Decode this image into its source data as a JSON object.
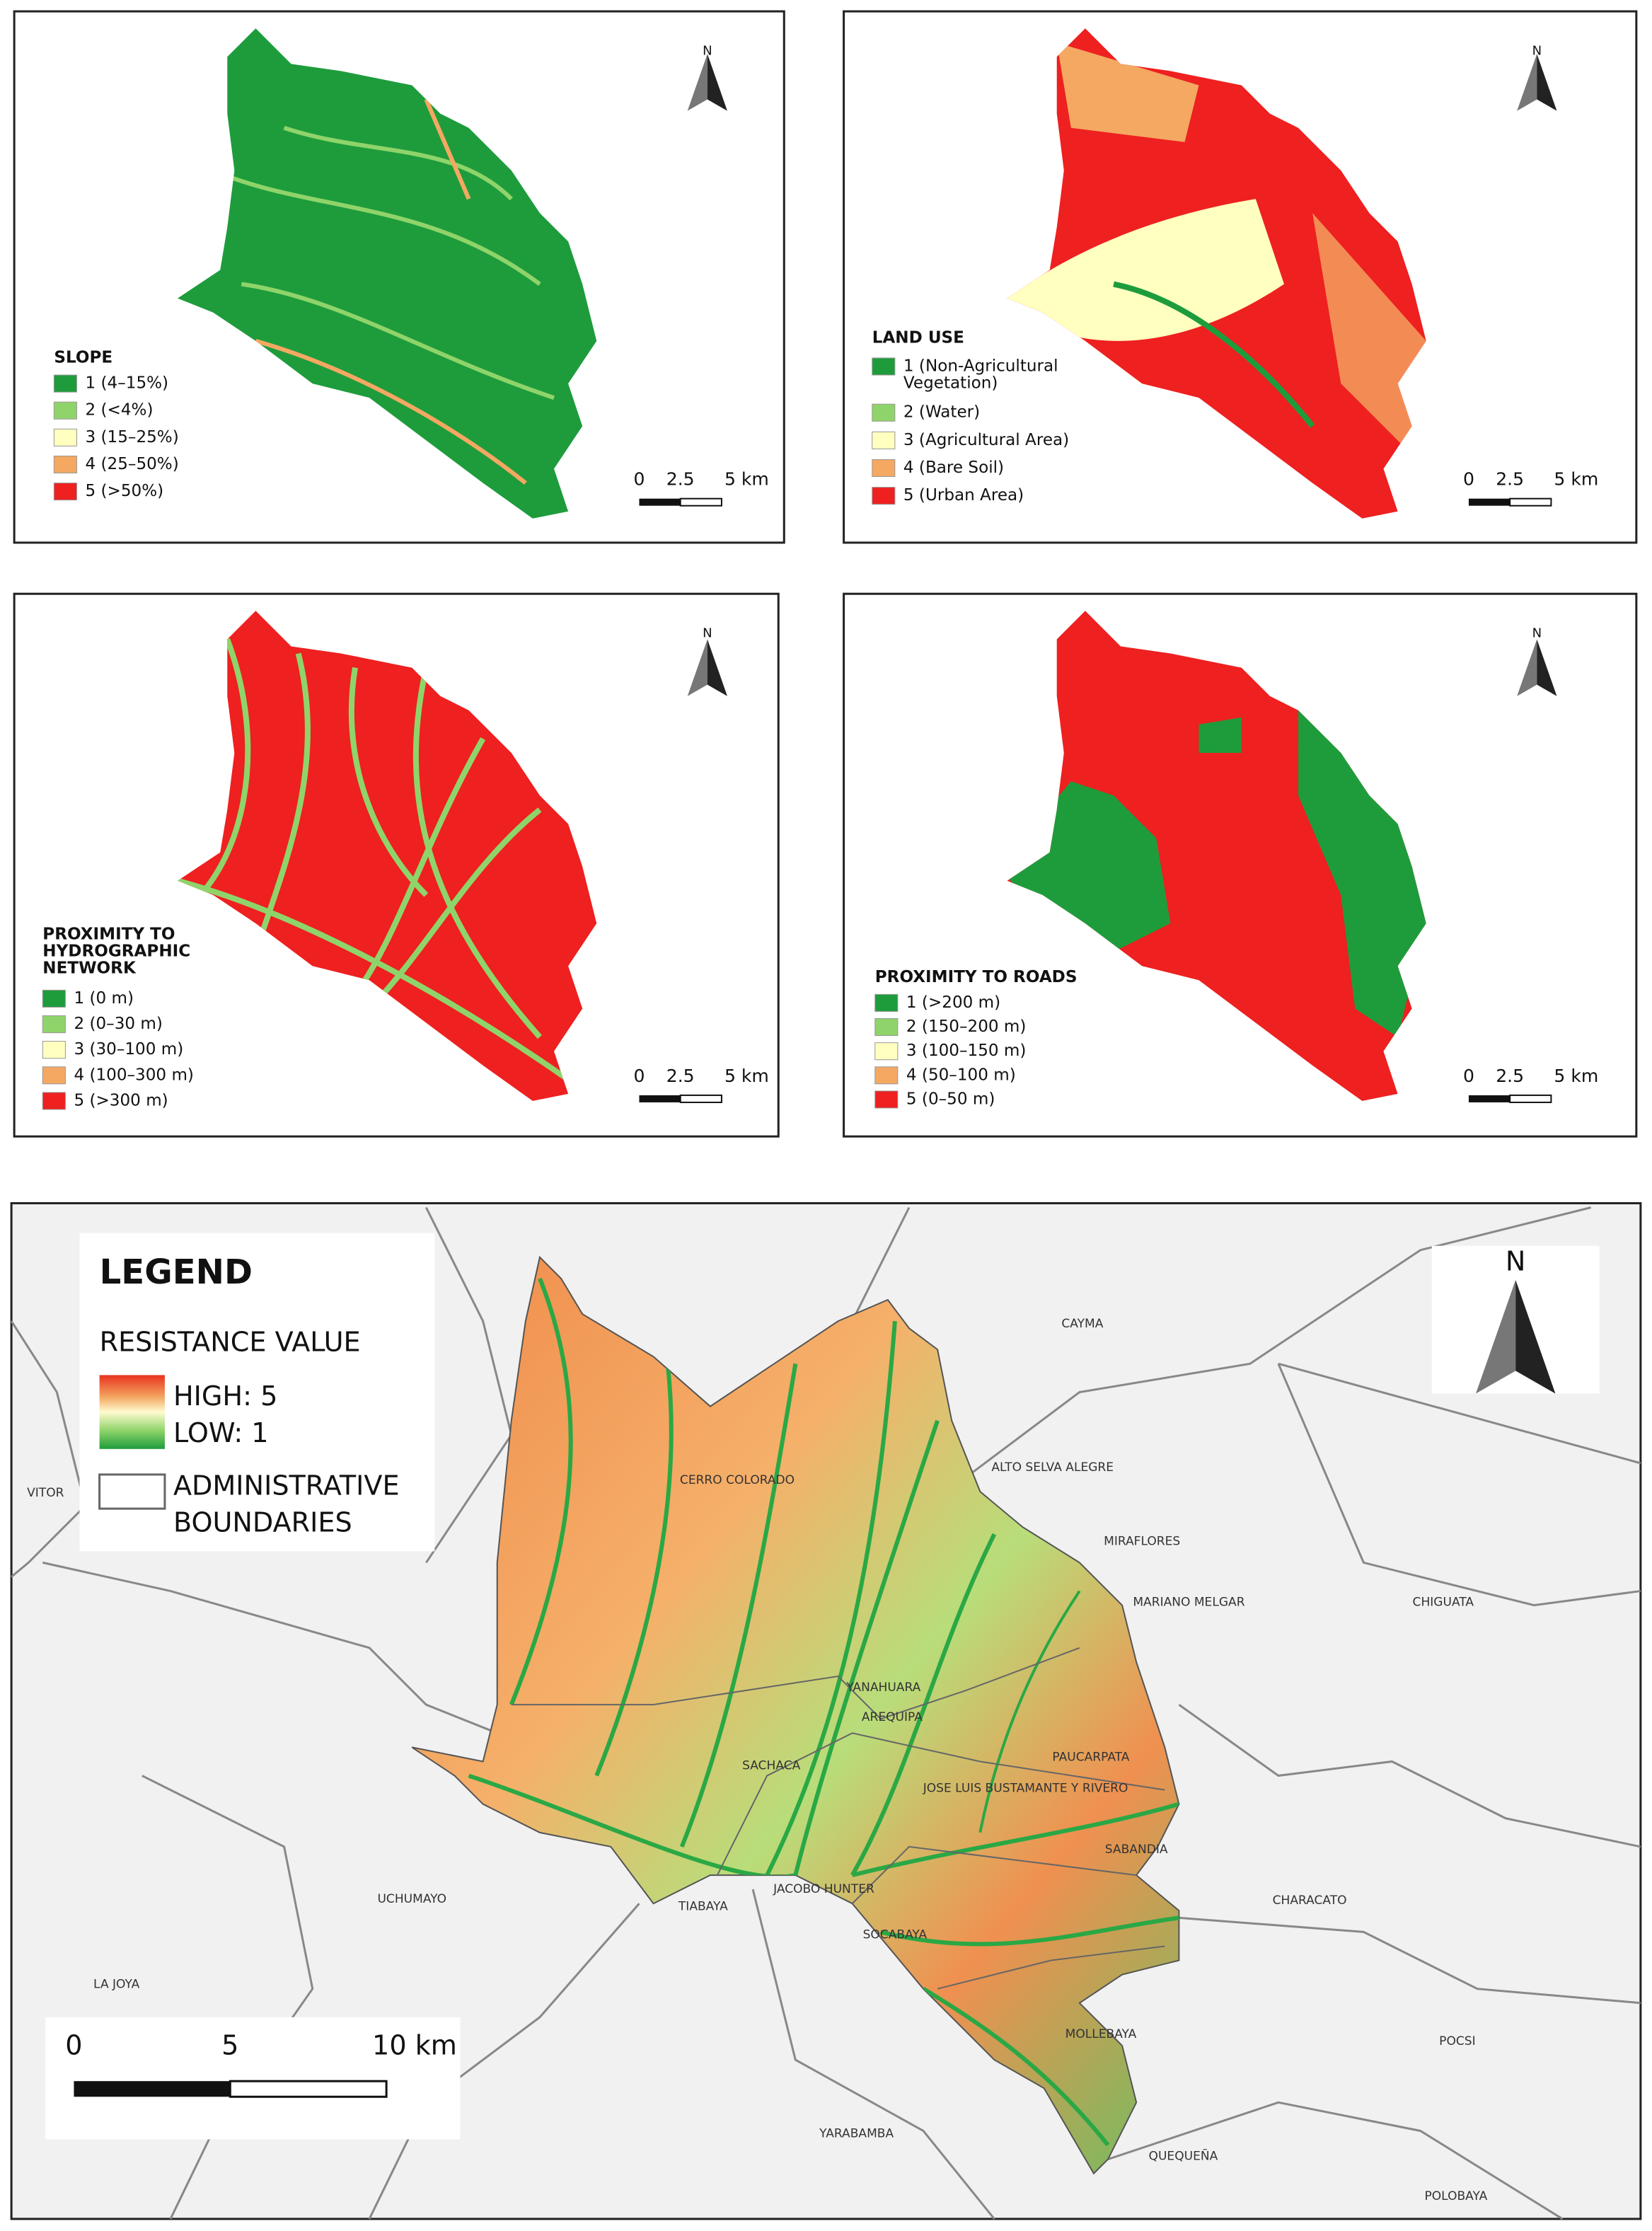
{
  "panels": [
    {
      "title_lines": [
        "SLOPE"
      ],
      "items": [
        {
          "lines": [
            "1 (4–15%)"
          ],
          "color": "#1e9c3c"
        },
        {
          "lines": [
            "2 (<4%)"
          ],
          "color": "#8fd46a"
        },
        {
          "lines": [
            "3 (15–25%)"
          ],
          "color": "#ffffc0"
        },
        {
          "lines": [
            "4 (25–50%)"
          ],
          "color": "#f4a862"
        },
        {
          "lines": [
            "5 (>50%)"
          ],
          "color": "#ee2020"
        }
      ],
      "scale_labels": [
        "0",
        "2.5",
        "5 km"
      ],
      "north": "N"
    },
    {
      "title_lines": [
        "LAND USE"
      ],
      "items": [
        {
          "lines": [
            "1 (Non-Agricultural",
            "Vegetation)"
          ],
          "color": "#1e9c3c"
        },
        {
          "lines": [
            "2 (Water)"
          ],
          "color": "#8fd46a"
        },
        {
          "lines": [
            "3 (Agricultural Area)"
          ],
          "color": "#ffffc0"
        },
        {
          "lines": [
            "4 (Bare Soil)"
          ],
          "color": "#f4a862"
        },
        {
          "lines": [
            "5 (Urban Area)"
          ],
          "color": "#ee2020"
        }
      ],
      "scale_labels": [
        "0",
        "2.5",
        "5 km"
      ],
      "north": "N"
    },
    {
      "title_lines": [
        "PROXIMITY TO",
        "HYDROGRAPHIC",
        "NETWORK"
      ],
      "items": [
        {
          "lines": [
            "1 (0 m)"
          ],
          "color": "#1e9c3c"
        },
        {
          "lines": [
            "2 (0–30 m)"
          ],
          "color": "#8fd46a"
        },
        {
          "lines": [
            "3 (30–100 m)"
          ],
          "color": "#ffffc0"
        },
        {
          "lines": [
            "4 (100–300 m)"
          ],
          "color": "#f4a862"
        },
        {
          "lines": [
            "5 (>300 m)"
          ],
          "color": "#ee2020"
        }
      ],
      "scale_labels": [
        "0",
        "2.5",
        "5 km"
      ],
      "north": "N"
    },
    {
      "title_lines": [
        "PROXIMITY TO ROADS"
      ],
      "items": [
        {
          "lines": [
            "1 (>200 m)"
          ],
          "color": "#1e9c3c"
        },
        {
          "lines": [
            "2 (150–200 m)"
          ],
          "color": "#8fd46a"
        },
        {
          "lines": [
            "3 (100–150 m)"
          ],
          "color": "#ffffc0"
        },
        {
          "lines": [
            "4 (50–100 m)"
          ],
          "color": "#f4a862"
        },
        {
          "lines": [
            "5 (0–50 m)"
          ],
          "color": "#ee2020"
        }
      ],
      "scale_labels": [
        "0",
        "2.5",
        "5 km"
      ],
      "north": "N"
    }
  ],
  "main_map": {
    "legend_title": "LEGEND",
    "resistance_title": "RESISTANCE VALUE",
    "high_label": "HIGH: 5",
    "low_label": "LOW: 1",
    "boundaries_lines": [
      "ADMINISTRATIVE",
      "BOUNDARIES"
    ],
    "scale_labels": [
      "0",
      "5",
      "10 km"
    ],
    "north": "N",
    "districts": [
      "CAYMA",
      "ALTO SELVA ALEGRE",
      "CERRO COLORADO",
      "VITOR",
      "MIRAFLORES",
      "MARIANO MELGAR",
      "CHIGUATA",
      "YANAHUARA",
      "AREQUIPA",
      "SACHACA",
      "PAUCARPATA",
      "JOSE LUIS BUSTAMANTE Y RIVERO",
      "SABANDIA",
      "UCHUMAYO",
      "CHARACATO",
      "TIABAYA",
      "JACOBO HUNTER",
      "SOCABAYA",
      "LA JOYA",
      "MOLLEBAYA",
      "POCSI",
      "YARABAMBA",
      "QUEQUEÑA",
      "POLOBAYA"
    ]
  }
}
